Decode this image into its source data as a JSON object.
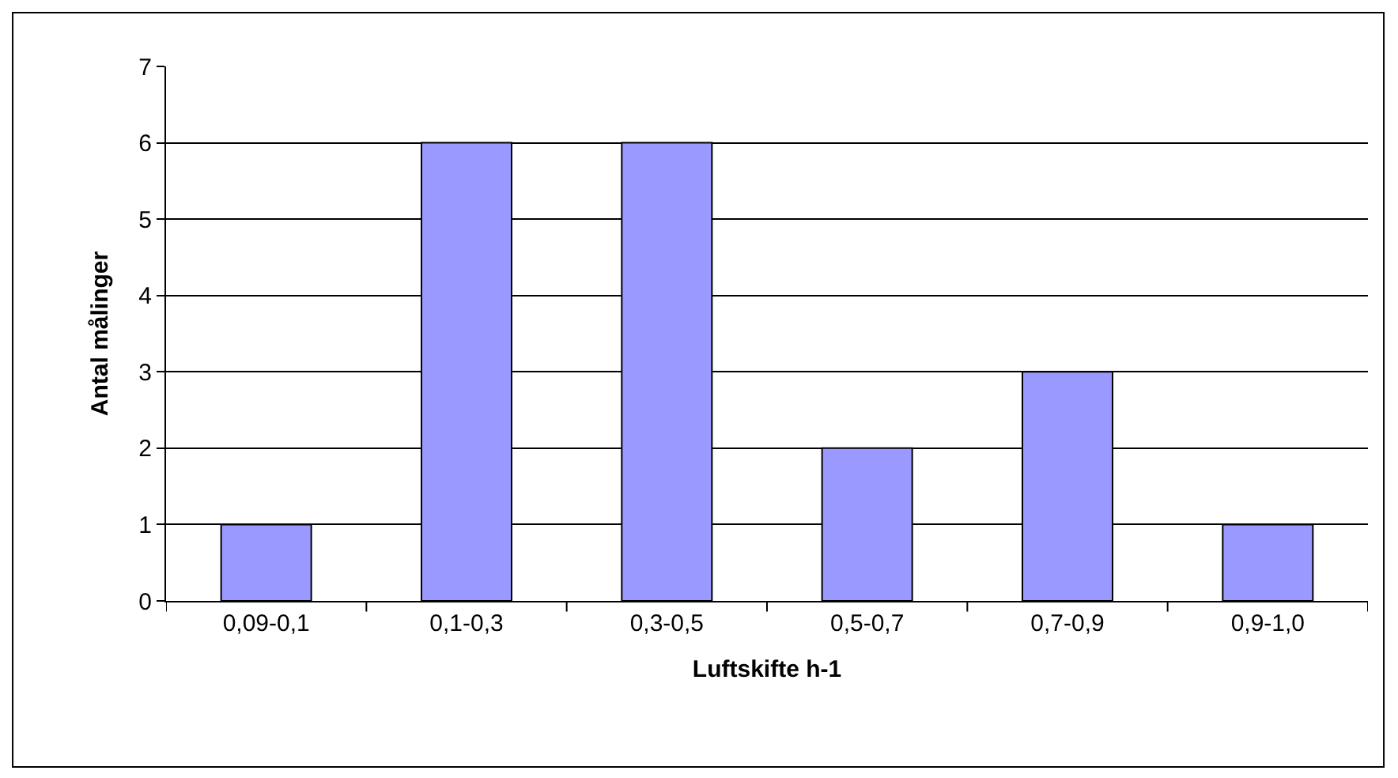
{
  "chart_data": {
    "type": "bar",
    "xlabel": "Luftskifte h-1",
    "ylabel": "Antal målinger",
    "categories": [
      "0,09-0,1",
      "0,1-0,3",
      "0,3-0,5",
      "0,5-0,7",
      "0,7-0,9",
      "0,9-1,0"
    ],
    "values": [
      1,
      6,
      6,
      2,
      3,
      1
    ],
    "color": "#9999ff",
    "ylim": [
      0,
      7
    ],
    "yticks": [
      0,
      1,
      2,
      3,
      4,
      5,
      6,
      7
    ],
    "grid": "y"
  }
}
